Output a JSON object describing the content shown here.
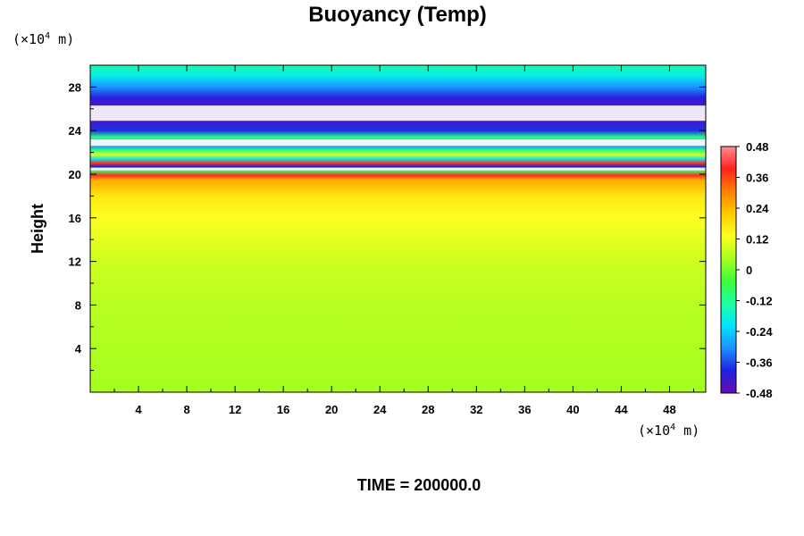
{
  "chart_data": {
    "type": "heatmap",
    "title": "Buoyancy (Temp)",
    "ylabel": "Height",
    "x_unit": {
      "prefix": "(×10",
      "exponent": "4",
      "suffix": " m)"
    },
    "y_unit": {
      "prefix": "(×10",
      "exponent": "4",
      "suffix": " m)"
    },
    "xlim": [
      0,
      51
    ],
    "ylim": [
      0,
      30
    ],
    "x_ticks": [
      4,
      8,
      12,
      16,
      20,
      24,
      28,
      32,
      36,
      40,
      44,
      48
    ],
    "y_ticks": [
      4,
      8,
      12,
      16,
      20,
      24,
      28
    ],
    "colorbar": {
      "range": [
        -0.48,
        0.48
      ],
      "tick_labels": [
        "0.48",
        "0.36",
        "0.24",
        "0.12",
        "0",
        "-0.12",
        "-0.24",
        "-0.36",
        "-0.48"
      ],
      "tick_values": [
        0.48,
        0.36,
        0.24,
        0.12,
        0,
        -0.12,
        -0.24,
        -0.36,
        -0.48
      ]
    },
    "field_profile": [
      {
        "height": 0,
        "value": 0.04
      },
      {
        "height": 4,
        "value": 0.05
      },
      {
        "height": 8,
        "value": 0.06
      },
      {
        "height": 12,
        "value": 0.08
      },
      {
        "height": 16,
        "value": 0.13
      },
      {
        "height": 18,
        "value": 0.17
      },
      {
        "height": 19.5,
        "value": 0.26
      },
      {
        "height": 19.9,
        "value": 0.4
      },
      {
        "height": 20.3,
        "value": -0.05
      },
      {
        "height": 20.7,
        "value": -0.4
      },
      {
        "height": 21,
        "value": 0.38
      },
      {
        "height": 21.4,
        "value": -0.2
      },
      {
        "height": 21.8,
        "value": 0.1
      },
      {
        "height": 22.2,
        "value": -0.1
      },
      {
        "height": 22.6,
        "value": -0.3
      },
      {
        "height": 23.4,
        "value": -0.1
      },
      {
        "height": 24,
        "value": -0.38
      },
      {
        "height": 25,
        "value": -0.44
      },
      {
        "height": 26,
        "value": -0.46
      },
      {
        "height": 27,
        "value": -0.4
      },
      {
        "height": 28,
        "value": -0.3
      },
      {
        "height": 29,
        "value": -0.2
      },
      {
        "height": 30,
        "value": -0.14
      }
    ],
    "out_of_range_bands": [
      {
        "from": 24.9,
        "to": 26.3,
        "note": "below -0.48 (white)"
      },
      {
        "from": 22.6,
        "to": 23.2,
        "note": "below -0.48 (white)"
      },
      {
        "from": 20.35,
        "to": 20.6,
        "note": "below -0.48 (white)"
      }
    ],
    "colors": {
      "scale": [
        "#6a0dad",
        "#2020e0",
        "#1e90ff",
        "#00e5ff",
        "#20ffa0",
        "#3cff3c",
        "#a8ff20",
        "#ffff20",
        "#ffcc00",
        "#ff8000",
        "#ff2020",
        "#ff9090"
      ]
    }
  },
  "footer": {
    "time_label": "TIME = 200000.0"
  }
}
